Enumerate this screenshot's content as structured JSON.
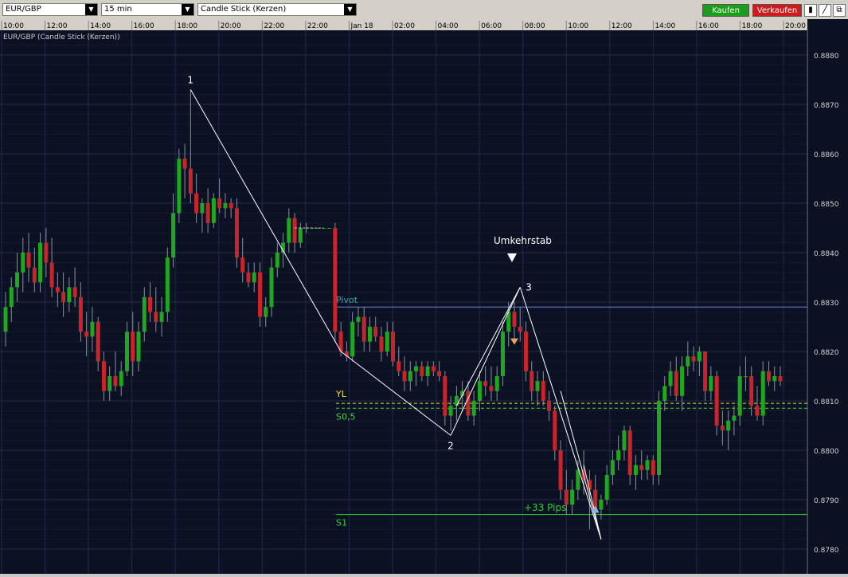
{
  "toolbar": {
    "symbol": "EUR/GBP",
    "interval": "15 min",
    "chart_style": "Candle Stick (Kerzen)",
    "buy_label": "Kaufen",
    "sell_label": "Verkaufen",
    "tool_icons": [
      "bars-icon",
      "draw-line-icon",
      "popout-icon"
    ]
  },
  "chart_title": "EUR/GBP (Candle Stick (Kerzen))",
  "colors": {
    "background": "#0b1123",
    "grid": "#1e2a48",
    "bull": "#1fa81f",
    "bear": "#c8252b",
    "pivot": "#6f86d6",
    "yl": "#e6e22a",
    "s05": "#3fd43f",
    "s1": "#2fcf2f",
    "buy": "#1c9c1c",
    "sell": "#d11b1b"
  },
  "chart_data": {
    "type": "candlestick",
    "x_tick_labels": [
      "10:00",
      "12:00",
      "14:00",
      "16:00",
      "18:00",
      "20:00",
      "22:00",
      "22:00",
      "Jan 18",
      "02:00",
      "04:00",
      "06:00",
      "08:00",
      "10:00",
      "12:00",
      "14:00",
      "16:00",
      "18:00",
      "20:00"
    ],
    "y_tick_labels": [
      "0.8780",
      "0.8790",
      "0.8800",
      "0.8810",
      "0.8820",
      "0.8830",
      "0.8840",
      "0.8850",
      "0.8860",
      "0.8870",
      "0.8880"
    ],
    "ylim": [
      0.8775,
      0.8885
    ],
    "candles": [
      {
        "o": 0.8824,
        "h": 0.8832,
        "l": 0.8821,
        "c": 0.8829
      },
      {
        "o": 0.8829,
        "h": 0.8835,
        "l": 0.8826,
        "c": 0.8833
      },
      {
        "o": 0.8833,
        "h": 0.884,
        "l": 0.883,
        "c": 0.8836
      },
      {
        "o": 0.8836,
        "h": 0.8843,
        "l": 0.8832,
        "c": 0.884
      },
      {
        "o": 0.884,
        "h": 0.8844,
        "l": 0.8834,
        "c": 0.8837
      },
      {
        "o": 0.8837,
        "h": 0.8841,
        "l": 0.8832,
        "c": 0.8834
      },
      {
        "o": 0.8834,
        "h": 0.8844,
        "l": 0.8832,
        "c": 0.8842
      },
      {
        "o": 0.8842,
        "h": 0.8845,
        "l": 0.8835,
        "c": 0.8838
      },
      {
        "o": 0.8838,
        "h": 0.8843,
        "l": 0.8831,
        "c": 0.8833
      },
      {
        "o": 0.8833,
        "h": 0.8836,
        "l": 0.8829,
        "c": 0.8832
      },
      {
        "o": 0.8832,
        "h": 0.8836,
        "l": 0.8827,
        "c": 0.883
      },
      {
        "o": 0.883,
        "h": 0.8835,
        "l": 0.8828,
        "c": 0.8833
      },
      {
        "o": 0.8833,
        "h": 0.8837,
        "l": 0.8829,
        "c": 0.8831
      },
      {
        "o": 0.8831,
        "h": 0.8834,
        "l": 0.8822,
        "c": 0.8824
      },
      {
        "o": 0.8824,
        "h": 0.8828,
        "l": 0.8819,
        "c": 0.8823
      },
      {
        "o": 0.8823,
        "h": 0.8829,
        "l": 0.882,
        "c": 0.8826
      },
      {
        "o": 0.8826,
        "h": 0.8827,
        "l": 0.8816,
        "c": 0.8818
      },
      {
        "o": 0.8818,
        "h": 0.882,
        "l": 0.881,
        "c": 0.8812
      },
      {
        "o": 0.8812,
        "h": 0.8817,
        "l": 0.881,
        "c": 0.8815
      },
      {
        "o": 0.8815,
        "h": 0.882,
        "l": 0.8812,
        "c": 0.8813
      },
      {
        "o": 0.8813,
        "h": 0.8818,
        "l": 0.8811,
        "c": 0.8816
      },
      {
        "o": 0.8816,
        "h": 0.8826,
        "l": 0.8815,
        "c": 0.8824
      },
      {
        "o": 0.8824,
        "h": 0.8828,
        "l": 0.8815,
        "c": 0.8818
      },
      {
        "o": 0.8818,
        "h": 0.8826,
        "l": 0.8816,
        "c": 0.8824
      },
      {
        "o": 0.8824,
        "h": 0.8833,
        "l": 0.8822,
        "c": 0.8831
      },
      {
        "o": 0.8831,
        "h": 0.8834,
        "l": 0.8826,
        "c": 0.8828
      },
      {
        "o": 0.8828,
        "h": 0.8833,
        "l": 0.8824,
        "c": 0.8826
      },
      {
        "o": 0.8826,
        "h": 0.8831,
        "l": 0.8823,
        "c": 0.8828
      },
      {
        "o": 0.8828,
        "h": 0.8841,
        "l": 0.8826,
        "c": 0.8839
      },
      {
        "o": 0.8839,
        "h": 0.8852,
        "l": 0.8837,
        "c": 0.8848
      },
      {
        "o": 0.8848,
        "h": 0.8861,
        "l": 0.8846,
        "c": 0.8859
      },
      {
        "o": 0.8859,
        "h": 0.8862,
        "l": 0.8851,
        "c": 0.8857
      },
      {
        "o": 0.8857,
        "h": 0.8873,
        "l": 0.885,
        "c": 0.8852
      },
      {
        "o": 0.8852,
        "h": 0.8856,
        "l": 0.8846,
        "c": 0.8848
      },
      {
        "o": 0.8848,
        "h": 0.8851,
        "l": 0.8844,
        "c": 0.885
      },
      {
        "o": 0.885,
        "h": 0.8853,
        "l": 0.8844,
        "c": 0.8846
      },
      {
        "o": 0.8846,
        "h": 0.8852,
        "l": 0.8845,
        "c": 0.8851
      },
      {
        "o": 0.8851,
        "h": 0.8855,
        "l": 0.8848,
        "c": 0.8849
      },
      {
        "o": 0.8849,
        "h": 0.8852,
        "l": 0.8847,
        "c": 0.885
      },
      {
        "o": 0.885,
        "h": 0.8851,
        "l": 0.8847,
        "c": 0.8849
      },
      {
        "o": 0.8849,
        "h": 0.8851,
        "l": 0.8837,
        "c": 0.8839
      },
      {
        "o": 0.8839,
        "h": 0.8843,
        "l": 0.8834,
        "c": 0.8836
      },
      {
        "o": 0.8836,
        "h": 0.8838,
        "l": 0.8833,
        "c": 0.8834
      },
      {
        "o": 0.8834,
        "h": 0.8838,
        "l": 0.8832,
        "c": 0.8836
      },
      {
        "o": 0.8836,
        "h": 0.8838,
        "l": 0.8825,
        "c": 0.8827
      },
      {
        "o": 0.8827,
        "h": 0.8831,
        "l": 0.8825,
        "c": 0.8829
      },
      {
        "o": 0.8829,
        "h": 0.8839,
        "l": 0.8827,
        "c": 0.8837
      },
      {
        "o": 0.8837,
        "h": 0.8842,
        "l": 0.8835,
        "c": 0.884
      },
      {
        "o": 0.884,
        "h": 0.8844,
        "l": 0.8837,
        "c": 0.8842
      },
      {
        "o": 0.8842,
        "h": 0.8849,
        "l": 0.884,
        "c": 0.8847
      },
      {
        "o": 0.8847,
        "h": 0.8848,
        "l": 0.884,
        "c": 0.8842
      },
      {
        "o": 0.8842,
        "h": 0.8846,
        "l": 0.8841,
        "c": 0.8845
      },
      {
        "o": 0.8845,
        "h": 0.8846,
        "l": 0.8844,
        "c": 0.8845
      },
      {
        "o": 0.8845,
        "h": 0.8845,
        "l": 0.8845,
        "c": 0.8845
      },
      {
        "o": 0.8845,
        "h": 0.8845,
        "l": 0.8845,
        "c": 0.8845
      },
      {
        "o": 0.8845,
        "h": 0.8845,
        "l": 0.8845,
        "c": 0.8845
      },
      {
        "o": 0.8845,
        "h": 0.8845,
        "l": 0.8845,
        "c": 0.8845
      },
      {
        "o": 0.8845,
        "h": 0.8846,
        "l": 0.8822,
        "c": 0.8824
      },
      {
        "o": 0.8824,
        "h": 0.8826,
        "l": 0.8819,
        "c": 0.882
      },
      {
        "o": 0.882,
        "h": 0.8822,
        "l": 0.8818,
        "c": 0.8819
      },
      {
        "o": 0.8819,
        "h": 0.8828,
        "l": 0.8818,
        "c": 0.8826
      },
      {
        "o": 0.8826,
        "h": 0.8829,
        "l": 0.8823,
        "c": 0.8827
      },
      {
        "o": 0.8827,
        "h": 0.8829,
        "l": 0.882,
        "c": 0.8822
      },
      {
        "o": 0.8822,
        "h": 0.8827,
        "l": 0.882,
        "c": 0.8825
      },
      {
        "o": 0.8825,
        "h": 0.8827,
        "l": 0.8822,
        "c": 0.8823
      },
      {
        "o": 0.8823,
        "h": 0.8825,
        "l": 0.8818,
        "c": 0.882
      },
      {
        "o": 0.882,
        "h": 0.8826,
        "l": 0.8819,
        "c": 0.8824
      },
      {
        "o": 0.8824,
        "h": 0.8826,
        "l": 0.8817,
        "c": 0.8818
      },
      {
        "o": 0.8818,
        "h": 0.8821,
        "l": 0.8815,
        "c": 0.8816
      },
      {
        "o": 0.8816,
        "h": 0.8819,
        "l": 0.8812,
        "c": 0.8814
      },
      {
        "o": 0.8814,
        "h": 0.8818,
        "l": 0.8812,
        "c": 0.8816
      },
      {
        "o": 0.8816,
        "h": 0.8818,
        "l": 0.8813,
        "c": 0.8817
      },
      {
        "o": 0.8817,
        "h": 0.8818,
        "l": 0.8814,
        "c": 0.8815
      },
      {
        "o": 0.8815,
        "h": 0.8818,
        "l": 0.8813,
        "c": 0.8817
      },
      {
        "o": 0.8817,
        "h": 0.8818,
        "l": 0.8815,
        "c": 0.8816
      },
      {
        "o": 0.8816,
        "h": 0.8818,
        "l": 0.8814,
        "c": 0.8815
      },
      {
        "o": 0.8815,
        "h": 0.8816,
        "l": 0.8805,
        "c": 0.8807
      },
      {
        "o": 0.8807,
        "h": 0.8811,
        "l": 0.8804,
        "c": 0.8809
      },
      {
        "o": 0.8809,
        "h": 0.8813,
        "l": 0.8806,
        "c": 0.8811
      },
      {
        "o": 0.8811,
        "h": 0.8814,
        "l": 0.8808,
        "c": 0.8812
      },
      {
        "o": 0.8812,
        "h": 0.8814,
        "l": 0.8806,
        "c": 0.8807
      },
      {
        "o": 0.8807,
        "h": 0.8812,
        "l": 0.8805,
        "c": 0.881
      },
      {
        "o": 0.881,
        "h": 0.8816,
        "l": 0.8808,
        "c": 0.8814
      },
      {
        "o": 0.8814,
        "h": 0.8817,
        "l": 0.8811,
        "c": 0.8813
      },
      {
        "o": 0.8813,
        "h": 0.8817,
        "l": 0.881,
        "c": 0.8812
      },
      {
        "o": 0.8812,
        "h": 0.8817,
        "l": 0.881,
        "c": 0.8815
      },
      {
        "o": 0.8815,
        "h": 0.8826,
        "l": 0.8813,
        "c": 0.8824
      },
      {
        "o": 0.8824,
        "h": 0.883,
        "l": 0.8821,
        "c": 0.8828
      },
      {
        "o": 0.8828,
        "h": 0.883,
        "l": 0.8822,
        "c": 0.8825
      },
      {
        "o": 0.8825,
        "h": 0.8829,
        "l": 0.8822,
        "c": 0.8824
      },
      {
        "o": 0.8824,
        "h": 0.8826,
        "l": 0.8814,
        "c": 0.8816
      },
      {
        "o": 0.8816,
        "h": 0.8818,
        "l": 0.881,
        "c": 0.8812
      },
      {
        "o": 0.8812,
        "h": 0.8816,
        "l": 0.8809,
        "c": 0.8814
      },
      {
        "o": 0.8814,
        "h": 0.8816,
        "l": 0.8809,
        "c": 0.881
      },
      {
        "o": 0.881,
        "h": 0.8812,
        "l": 0.8806,
        "c": 0.8808
      },
      {
        "o": 0.8808,
        "h": 0.8809,
        "l": 0.8798,
        "c": 0.88
      },
      {
        "o": 0.88,
        "h": 0.8802,
        "l": 0.879,
        "c": 0.8792
      },
      {
        "o": 0.8792,
        "h": 0.8796,
        "l": 0.8787,
        "c": 0.8789
      },
      {
        "o": 0.8789,
        "h": 0.8794,
        "l": 0.8787,
        "c": 0.8792
      },
      {
        "o": 0.8792,
        "h": 0.8798,
        "l": 0.879,
        "c": 0.8796
      },
      {
        "o": 0.8796,
        "h": 0.88,
        "l": 0.8791,
        "c": 0.8794
      },
      {
        "o": 0.8794,
        "h": 0.8796,
        "l": 0.8784,
        "c": 0.8792
      },
      {
        "o": 0.8792,
        "h": 0.8795,
        "l": 0.8786,
        "c": 0.8788
      },
      {
        "o": 0.8788,
        "h": 0.8791,
        "l": 0.8786,
        "c": 0.879
      },
      {
        "o": 0.879,
        "h": 0.8797,
        "l": 0.8789,
        "c": 0.8795
      },
      {
        "o": 0.8795,
        "h": 0.88,
        "l": 0.8793,
        "c": 0.8798
      },
      {
        "o": 0.8798,
        "h": 0.8803,
        "l": 0.8796,
        "c": 0.88
      },
      {
        "o": 0.88,
        "h": 0.8805,
        "l": 0.8798,
        "c": 0.8804
      },
      {
        "o": 0.8804,
        "h": 0.8805,
        "l": 0.8793,
        "c": 0.8795
      },
      {
        "o": 0.8795,
        "h": 0.8799,
        "l": 0.8792,
        "c": 0.8797
      },
      {
        "o": 0.8797,
        "h": 0.88,
        "l": 0.8794,
        "c": 0.8796
      },
      {
        "o": 0.8796,
        "h": 0.8799,
        "l": 0.8794,
        "c": 0.8798
      },
      {
        "o": 0.8798,
        "h": 0.8799,
        "l": 0.8793,
        "c": 0.8795
      },
      {
        "o": 0.8795,
        "h": 0.8812,
        "l": 0.8793,
        "c": 0.881
      },
      {
        "o": 0.881,
        "h": 0.8815,
        "l": 0.8808,
        "c": 0.8813
      },
      {
        "o": 0.8813,
        "h": 0.8818,
        "l": 0.8811,
        "c": 0.8816
      },
      {
        "o": 0.8816,
        "h": 0.8819,
        "l": 0.881,
        "c": 0.8811
      },
      {
        "o": 0.8811,
        "h": 0.8819,
        "l": 0.8808,
        "c": 0.8817
      },
      {
        "o": 0.8817,
        "h": 0.8822,
        "l": 0.8815,
        "c": 0.8819
      },
      {
        "o": 0.8819,
        "h": 0.8821,
        "l": 0.8816,
        "c": 0.8818
      },
      {
        "o": 0.8818,
        "h": 0.8821,
        "l": 0.8815,
        "c": 0.882
      },
      {
        "o": 0.882,
        "h": 0.882,
        "l": 0.881,
        "c": 0.8812
      },
      {
        "o": 0.8812,
        "h": 0.8817,
        "l": 0.881,
        "c": 0.8815
      },
      {
        "o": 0.8815,
        "h": 0.8816,
        "l": 0.8803,
        "c": 0.8805
      },
      {
        "o": 0.8805,
        "h": 0.8808,
        "l": 0.8801,
        "c": 0.8804
      },
      {
        "o": 0.8804,
        "h": 0.8808,
        "l": 0.88,
        "c": 0.8806
      },
      {
        "o": 0.8806,
        "h": 0.8809,
        "l": 0.8803,
        "c": 0.8807
      },
      {
        "o": 0.8807,
        "h": 0.8817,
        "l": 0.8805,
        "c": 0.8815
      },
      {
        "o": 0.8815,
        "h": 0.8819,
        "l": 0.8812,
        "c": 0.8815
      },
      {
        "o": 0.8815,
        "h": 0.8817,
        "l": 0.8807,
        "c": 0.8809
      },
      {
        "o": 0.8809,
        "h": 0.8813,
        "l": 0.8806,
        "c": 0.8807
      },
      {
        "o": 0.8807,
        "h": 0.8818,
        "l": 0.8805,
        "c": 0.8816
      },
      {
        "o": 0.8816,
        "h": 0.8818,
        "l": 0.8813,
        "c": 0.8814
      },
      {
        "o": 0.8814,
        "h": 0.8817,
        "l": 0.8812,
        "c": 0.8815
      },
      {
        "o": 0.8815,
        "h": 0.8817,
        "l": 0.8813,
        "c": 0.8814
      }
    ],
    "horizontal_levels": [
      {
        "label": "Pivot",
        "value": 0.8829,
        "style": "solid"
      },
      {
        "label": "YL",
        "value": 0.88095,
        "style": "dashed"
      },
      {
        "label": "S0,5",
        "value": 0.88085,
        "style": "dashed"
      },
      {
        "label": "S1",
        "value": 0.8787,
        "style": "solid"
      }
    ],
    "pattern_labels": [
      "1",
      "2",
      "3"
    ],
    "annotations": [
      "Umkehrstab",
      "+33 Pips"
    ]
  }
}
